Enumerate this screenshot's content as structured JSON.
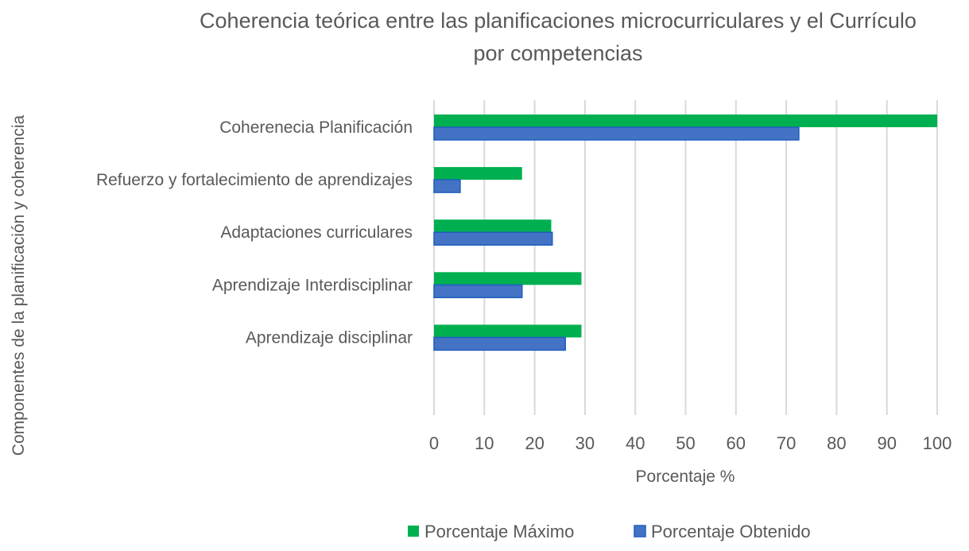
{
  "chart_data": {
    "type": "bar",
    "orientation": "horizontal",
    "title_lines": [
      "Coherencia teórica entre las planificaciones microcurriculares y el Currículo",
      "por competencias"
    ],
    "xlabel": "Porcentaje %",
    "ylabel": "Componentes de la planificación y coherencia",
    "xlim": [
      0,
      100
    ],
    "xticks": [
      "0",
      "10",
      "20",
      "30",
      "40",
      "50",
      "60",
      "70",
      "80",
      "90",
      "100"
    ],
    "grid": true,
    "legend_position": "bottom",
    "categories": [
      "Coherenecia Planificación",
      "Refuerzo y fortalecimiento de aprendizajes",
      "Adaptaciones curriculares",
      "Aprendizaje Interdisciplinar",
      "Aprendizaje disciplinar"
    ],
    "series": [
      {
        "name": "Porcentaje Máximo",
        "color": "#00b050",
        "values": [
          100,
          17.5,
          23.3,
          29.3,
          29.3
        ]
      },
      {
        "name": "Porcentaje Obtenido",
        "color": "#4472c4",
        "border_color": "#1f5fbf",
        "values": [
          72.5,
          5.2,
          23.5,
          17.5,
          26.1
        ]
      }
    ]
  }
}
